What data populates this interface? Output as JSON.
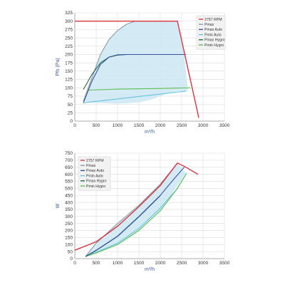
{
  "chart_data": [
    {
      "type": "line",
      "xlabel": "m³/h",
      "ylabel": "Pfs (Pa)",
      "xlim": [
        0,
        3500
      ],
      "ylim": [
        0,
        325
      ],
      "xticks": [
        "0",
        "500",
        "1000",
        "1500",
        "2000",
        "2500",
        "3000",
        "3500"
      ],
      "yticks": [
        "0",
        "25",
        "50",
        "75",
        "100",
        "125",
        "150",
        "175",
        "200",
        "225",
        "250",
        "275",
        "300",
        "325"
      ],
      "grid": true,
      "legend_position": "top-right",
      "area": {
        "upper": [
          [
            200,
            60
          ],
          [
            400,
            130
          ],
          [
            600,
            200
          ],
          [
            800,
            245
          ],
          [
            1000,
            272
          ],
          [
            1200,
            290
          ],
          [
            1400,
            300
          ],
          [
            2400,
            300
          ],
          [
            2560,
            200
          ],
          [
            2640,
            100
          ]
        ],
        "lower": [
          [
            200,
            60
          ],
          [
            400,
            55
          ],
          [
            1000,
            52
          ],
          [
            1500,
            56
          ],
          [
            1800,
            65
          ],
          [
            2000,
            75
          ],
          [
            2200,
            85
          ],
          [
            2400,
            90
          ],
          [
            2640,
            90
          ]
        ],
        "color": "#cde8f3"
      },
      "series": [
        {
          "name": "2757 RPM",
          "color": "#d9363e",
          "values": [
            [
              0,
              300
            ],
            [
              2400,
              300
            ],
            [
              2900,
              10
            ]
          ]
        },
        {
          "name": "Pmax",
          "color": "#8a9aa8",
          "values": [
            [
              200,
              60
            ],
            [
              400,
              130
            ],
            [
              600,
              200
            ],
            [
              800,
              245
            ],
            [
              1000,
              272
            ],
            [
              1200,
              290
            ],
            [
              1400,
              300
            ]
          ]
        },
        {
          "name": "Pmax Auto",
          "color": "#3a4fa3",
          "values": [
            [
              200,
              55
            ],
            [
              400,
              120
            ],
            [
              600,
              170
            ],
            [
              800,
              192
            ],
            [
              1000,
              199
            ],
            [
              1200,
              200
            ],
            [
              2600,
              200
            ]
          ]
        },
        {
          "name": "Pmin Auto",
          "color": "#66c2dd",
          "values": [
            [
              200,
              55
            ],
            [
              2600,
              90
            ]
          ]
        },
        {
          "name": "Pmax Hygro",
          "color": "#1f6a44",
          "values": [
            [
              200,
              95
            ],
            [
              400,
              140
            ],
            [
              600,
              175
            ],
            [
              800,
              192
            ],
            [
              1000,
              198
            ],
            [
              1200,
              200
            ],
            [
              2600,
              200
            ]
          ]
        },
        {
          "name": "Pmin Hygro",
          "color": "#5cbf4f",
          "values": [
            [
              300,
              93
            ],
            [
              1000,
              96
            ],
            [
              2000,
              98
            ],
            [
              2700,
              100
            ]
          ]
        }
      ]
    },
    {
      "type": "line",
      "xlabel": "m³/h",
      "ylabel": "W",
      "xlim": [
        0,
        3500
      ],
      "ylim": [
        0,
        750
      ],
      "xticks": [
        "0",
        "500",
        "1000",
        "1500",
        "2000",
        "2500",
        "3000",
        "3500"
      ],
      "yticks": [
        "0",
        "50",
        "100",
        "150",
        "200",
        "250",
        "300",
        "350",
        "400",
        "450",
        "500",
        "550",
        "600",
        "650",
        "700",
        "750"
      ],
      "grid": true,
      "legend_position": "top-left",
      "area": {
        "upper": [
          [
            250,
            15
          ],
          [
            500,
            110
          ],
          [
            1000,
            250
          ],
          [
            1500,
            380
          ],
          [
            2000,
            530
          ],
          [
            2400,
            680
          ]
        ],
        "lower": [
          [
            2600,
            610
          ],
          [
            2400,
            520
          ],
          [
            2000,
            340
          ],
          [
            1500,
            200
          ],
          [
            1000,
            100
          ],
          [
            500,
            40
          ],
          [
            250,
            15
          ]
        ],
        "color": "#cde8f3"
      },
      "series": [
        {
          "name": "2757 RPM",
          "color": "#d9363e",
          "values": [
            [
              0,
              60
            ],
            [
              500,
              120
            ],
            [
              1000,
              230
            ],
            [
              1500,
              370
            ],
            [
              2000,
              520
            ],
            [
              2400,
              680
            ],
            [
              2600,
              650
            ],
            [
              2880,
              600
            ]
          ]
        },
        {
          "name": "Pmax",
          "color": "#8a9aa8",
          "values": [
            [
              250,
              15
            ],
            [
              500,
              110
            ],
            [
              1000,
              250
            ],
            [
              1500,
              380
            ],
            [
              2000,
              530
            ],
            [
              2400,
              680
            ]
          ]
        },
        {
          "name": "Pmax Auto",
          "color": "#3a4fa3",
          "values": [
            [
              250,
              15
            ],
            [
              500,
              60
            ],
            [
              1000,
              160
            ],
            [
              1500,
              300
            ],
            [
              2000,
              450
            ],
            [
              2300,
              560
            ],
            [
              2560,
              650
            ]
          ]
        },
        {
          "name": "Pmin Auto",
          "color": "#66c2dd",
          "values": [
            [
              250,
              15
            ],
            [
              500,
              45
            ],
            [
              1000,
              110
            ],
            [
              1500,
              215
            ],
            [
              2000,
              360
            ],
            [
              2400,
              500
            ],
            [
              2620,
              610
            ]
          ]
        },
        {
          "name": "Pmax Hygro",
          "color": "#1f6a44",
          "values": [
            [
              250,
              14
            ],
            [
              500,
              58
            ],
            [
              1000,
              158
            ],
            [
              1500,
              298
            ],
            [
              2000,
              448
            ]
          ]
        },
        {
          "name": "Pmin Hygro",
          "color": "#5cbf4f",
          "values": [
            [
              250,
              15
            ],
            [
              500,
              40
            ],
            [
              1000,
              100
            ],
            [
              1500,
              200
            ],
            [
              2000,
              340
            ],
            [
              2400,
              500
            ],
            [
              2600,
              600
            ]
          ]
        }
      ]
    }
  ]
}
